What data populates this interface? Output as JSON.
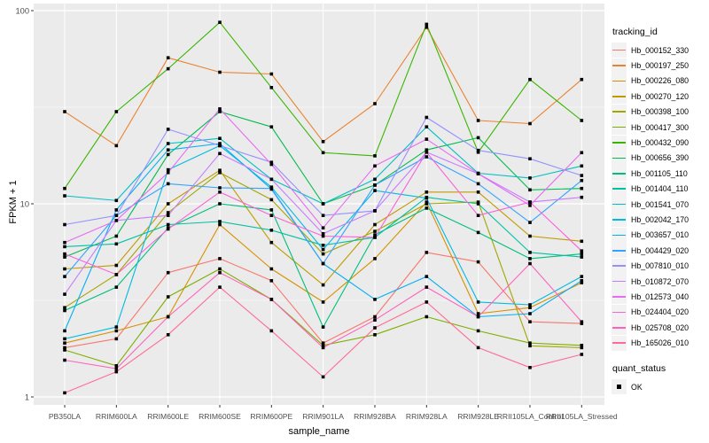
{
  "chart_data": {
    "type": "line",
    "title": "",
    "xlabel": "sample_name",
    "ylabel": "FPKM + 1",
    "y_scale": "log10",
    "ylim": [
      1,
      100
    ],
    "y_ticks": [
      1,
      10,
      100
    ],
    "y_minor_gridlines": [
      3.1623,
      31.623
    ],
    "grid": true,
    "legend_position": "right",
    "point_marker": "filled-black-square",
    "categories": [
      "PB350LA",
      "RRIM600LA",
      "RRIM600LE",
      "RRIM600SE",
      "RRIM600PE",
      "RRIM901LA",
      "RRIM928BA",
      "RRIM928LA",
      "RRIM928LE",
      "RRII105LA_Control",
      "RRII105LA_Stressed"
    ],
    "series": [
      {
        "name": "Hb_000152_330",
        "color": "#F8766D",
        "values": [
          1.8,
          2.0,
          4.4,
          5.2,
          4.0,
          1.9,
          2.6,
          5.6,
          5.0,
          2.45,
          2.4
        ]
      },
      {
        "name": "Hb_000197_250",
        "color": "#EA8331",
        "values": [
          30,
          20,
          57,
          48,
          47,
          21,
          33,
          82,
          27,
          26,
          44
        ]
      },
      {
        "name": "Hb_000226_080",
        "color": "#D89000",
        "values": [
          1.9,
          2.2,
          2.6,
          7.8,
          4.6,
          3.1,
          5.2,
          10.2,
          2.7,
          2.9,
          3.9
        ]
      },
      {
        "name": "Hb_000270_120",
        "color": "#C09B00",
        "values": [
          4.6,
          4.8,
          10.0,
          14.9,
          6.3,
          3.8,
          7.8,
          11.5,
          11.5,
          6.8,
          6.4
        ]
      },
      {
        "name": "Hb_000398_100",
        "color": "#A3A500",
        "values": [
          2.9,
          4.3,
          9.0,
          14.5,
          10.5,
          5.5,
          7.2,
          10.0,
          10.2,
          1.84,
          1.8
        ]
      },
      {
        "name": "Hb_000417_300",
        "color": "#7CAE00",
        "values": [
          1.75,
          1.45,
          3.3,
          4.6,
          3.2,
          1.85,
          2.1,
          2.6,
          2.2,
          1.9,
          1.85
        ]
      },
      {
        "name": "Hb_000432_090",
        "color": "#39B600",
        "values": [
          12,
          30,
          50,
          87,
          40,
          18.4,
          17.7,
          85,
          18.5,
          44,
          27
        ]
      },
      {
        "name": "Hb_000656_390",
        "color": "#00BB4E",
        "values": [
          5.3,
          6.8,
          18,
          30,
          25,
          10,
          12.5,
          19,
          22,
          11.8,
          12
        ]
      },
      {
        "name": "Hb_001105_110",
        "color": "#00BF7D",
        "values": [
          2.8,
          3.7,
          7.5,
          10,
          9.3,
          2.3,
          6.9,
          9.5,
          7.1,
          5.2,
          5.5
        ]
      },
      {
        "name": "Hb_001404_110",
        "color": "#00C1A3",
        "values": [
          6.0,
          6.2,
          7.8,
          8.1,
          7.3,
          6.1,
          6.7,
          10.8,
          10.0,
          5.6,
          5.3
        ]
      },
      {
        "name": "Hb_001541_070",
        "color": "#00BFC4",
        "values": [
          11,
          10.4,
          20.5,
          21.8,
          13.4,
          10,
          13.4,
          25,
          14.4,
          13.6,
          15.7
        ]
      },
      {
        "name": "Hb_002042_170",
        "color": "#00BAE0",
        "values": [
          2.0,
          2.3,
          15,
          20,
          12.2,
          5.8,
          11.7,
          10.7,
          3.1,
          3.0,
          4.2
        ]
      },
      {
        "name": "Hb_003657_010",
        "color": "#00B0F6",
        "values": [
          2.2,
          9.3,
          19,
          20.5,
          11.9,
          4.9,
          3.2,
          4.2,
          2.6,
          2.7,
          4.0
        ]
      },
      {
        "name": "Hb_004429_020",
        "color": "#35A2FF",
        "values": [
          4.2,
          8.7,
          12.7,
          12.1,
          12.0,
          4.9,
          12.5,
          17.5,
          12.7,
          8.0,
          13.2
        ]
      },
      {
        "name": "Hb_007810_010",
        "color": "#9590FF",
        "values": [
          7.8,
          8.7,
          24.3,
          20,
          16.4,
          8.7,
          9.2,
          28,
          18.9,
          17.1,
          14.0
        ]
      },
      {
        "name": "Hb_010872_070",
        "color": "#C77CFF",
        "values": [
          3.4,
          8.2,
          8.7,
          18.2,
          13.4,
          7.0,
          9.2,
          18.5,
          14.3,
          10.2,
          10.8
        ]
      },
      {
        "name": "Hb_012573_040",
        "color": "#E76BF3",
        "values": [
          6.3,
          8.2,
          14.5,
          31,
          16.0,
          7.5,
          15.7,
          21.6,
          14.3,
          9.8,
          18.4
        ]
      },
      {
        "name": "Hb_024404_020",
        "color": "#FA62DB",
        "values": [
          5.5,
          4.3,
          7.4,
          11.5,
          8.7,
          6.8,
          6.7,
          18.5,
          8.7,
          10.2,
          5.7
        ]
      },
      {
        "name": "Hb_025708_020",
        "color": "#FF62BC",
        "values": [
          1.55,
          1.4,
          2.6,
          4.4,
          3.2,
          1.8,
          2.5,
          3.7,
          2.6,
          4.9,
          2.45
        ]
      },
      {
        "name": "Hb_165026_010",
        "color": "#FF6A98",
        "values": [
          1.05,
          1.35,
          2.1,
          3.7,
          2.2,
          1.27,
          2.28,
          3.1,
          1.8,
          1.42,
          1.66
        ]
      }
    ]
  },
  "legend": {
    "tracking_title": "tracking_id",
    "quant_title": "quant_status",
    "quant_items": [
      {
        "label": "OK"
      }
    ]
  },
  "style_colors": {
    "panel_bg": "#EBEBEB",
    "gridline": "#FFFFFF",
    "legend_key_bg": "#F2F2F2",
    "tick_label": "#4D4D4D",
    "tick_mark": "#333333",
    "axis_title": "#000000",
    "marker": "#000000"
  }
}
